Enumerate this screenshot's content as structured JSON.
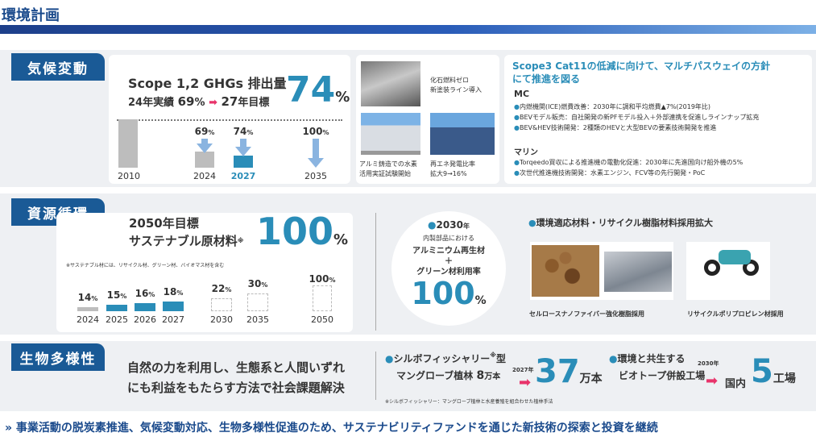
{
  "title": "環境計画",
  "climate": {
    "label": "気候変動",
    "heading": "Scope 1,2 GHGs 排出量",
    "actual_label": "24年実績",
    "actual_value": "69",
    "percent": "%",
    "target_label": "年目標",
    "target_year": "27",
    "big_value": "74",
    "chart_data": {
      "type": "bar",
      "categories": [
        "2010",
        "2024",
        "2027",
        "2035"
      ],
      "values": [
        100,
        31,
        26,
        0
      ],
      "labels": [
        "",
        "69%",
        "74%",
        "100%"
      ]
    },
    "pct_2024": "69",
    "pct_2027": "74",
    "pct_2035": "100",
    "pct_unit": "%",
    "x2010": "2010",
    "x2024": "2024",
    "x2027": "2027",
    "x2035": "2035",
    "photo1_caption_1": "化石燃料ゼロ",
    "photo1_caption_2": "新塗装ライン導入",
    "photo2_caption_1": "アルミ鋳造での水素",
    "photo2_caption_2": "活用実証試験開始",
    "photo3_caption_1": "再エネ発電比率",
    "photo3_caption_2": "拡大9→16%",
    "scope3_title_1": "Scope3 Cat11の低減に向けて、マルチパスウェイの方針",
    "scope3_title_2": "にて推進を図る",
    "mc_heading": "MC",
    "mc_item1": "内燃機関(ICE)燃費改善：2030年に調和平均燃費▲7%(2019年比)",
    "mc_item2": "BEVモデル販売：自社開発の新PFモデル投入＋外部連携を促進しラインナップ拡充",
    "mc_item3": "BEV&HEV技術開発：2種類のHEVと大型BEVの要素技術開発を推進",
    "marine_heading": "マリン",
    "marine_item1": "Torqeedo買収による推進機の電動化促進：2030年に先進国向け船外機の5%",
    "marine_item2": "次世代推進機技術開発：水素エンジン、FCV等の先行開発・PoC"
  },
  "resource": {
    "label": "資源循環",
    "goal_line1": "2050年目標",
    "goal_line2": "サステナブル原材料",
    "asterisk": "※",
    "big_value": "100",
    "percent": "%",
    "footnote": "※サステナブル材には、リサイクル材、グリーン材、バイオマス材を含む",
    "chart_data": {
      "type": "bar",
      "categories": [
        "2024",
        "2025",
        "2026",
        "2027",
        "2030",
        "2035",
        "2050"
      ],
      "values": [
        14,
        15,
        16,
        18,
        22,
        30,
        100
      ]
    },
    "p2024": "14",
    "p2025": "15",
    "p2026": "16",
    "p2027": "18",
    "p2030": "22",
    "p2035": "30",
    "p2050": "100",
    "x2024": "2024",
    "x2025": "2025",
    "x2026": "2026",
    "x2027": "2027",
    "x2030": "2030",
    "x2035": "2035",
    "x2050": "2050",
    "center_year": "2030",
    "center_year_unit": "年",
    "center_line1": "内製部品における",
    "center_line2": "アルミニウム再生材",
    "center_plus": "＋",
    "center_line3": "グリーン材利用率",
    "center_big": "100",
    "material_heading": "環境適応材料・リサイクル樹脂材料採用拡大",
    "caption_left": "セルロースナノファイバー強化樹脂採用",
    "caption_right": "リサイクルポリプロピレン材採用"
  },
  "bio": {
    "label": "生物多様性",
    "text_line1": "自然の力を利用し、生態系と人間いずれ",
    "text_line2": "にも利益をもたらす方法で社会課題解決",
    "silvo_line1": "シルボフィッシャリー",
    "silvo_asterisk": "※",
    "silvo_type": "型",
    "silvo_line2": "マングローブ植林",
    "silvo_from": "8",
    "silvo_unit": "万本",
    "silvo_year": "2027年",
    "silvo_big": "37",
    "silvo_big_unit": "万本",
    "silvo_note": "※シルボフィッシャリー：マングローブ植林と水産養殖を組合わせた植林手法",
    "biotope_line1": "環境と共生する",
    "biotope_line2": "ビオトープ併設工場",
    "biotope_year": "2030年",
    "biotope_domestic": "国内",
    "biotope_big": "5",
    "biotope_unit": "工場"
  },
  "footer": "事業活動の脱炭素推進、気候変動対応、生物多様性促進のため、サステナビリティファンドを通じた新技術の探索と投資を継続",
  "colors": {
    "navy": "#1a5a96",
    "accent": "#2a8db8",
    "band": "#eef0f3"
  }
}
